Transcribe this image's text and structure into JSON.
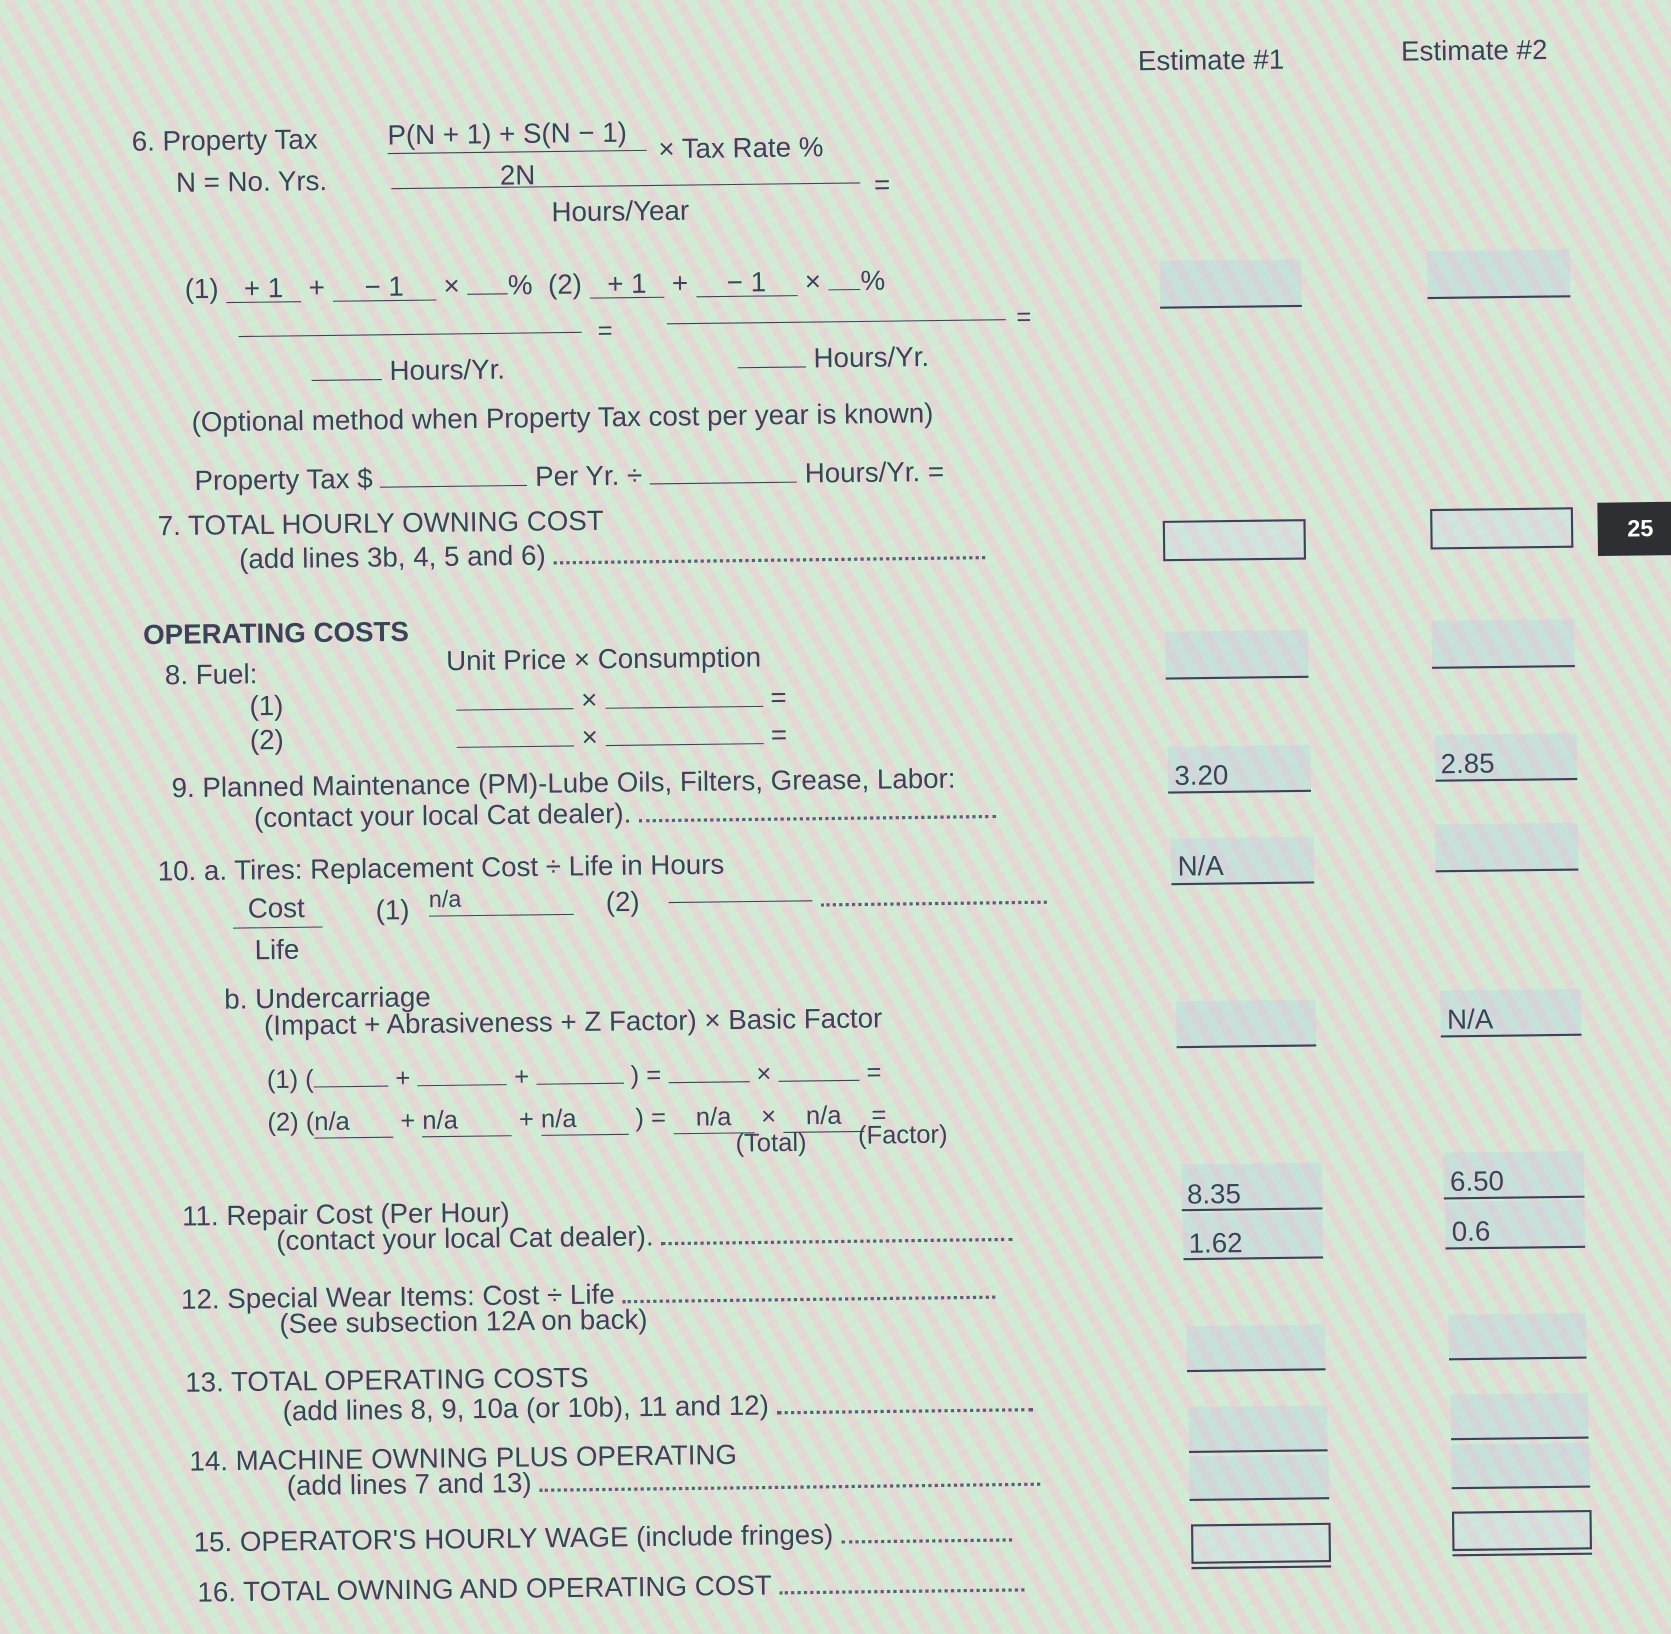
{
  "header": {
    "estimate1": "Estimate #1",
    "estimate2": "Estimate #2"
  },
  "page_tab": "25",
  "line6": {
    "title": "6. Property Tax",
    "subtitle": "N = No. Yrs.",
    "numerator": "P(N + 1) + S(N − 1)",
    "denominator": "2N",
    "tax_rate": "× Tax Rate %",
    "equals": "=",
    "hours_year": "Hours/Year",
    "row1_label": "(1)",
    "row2_label": "(2)",
    "plus1": "+ 1",
    "minus1": "− 1",
    "plus": "+",
    "times": "×",
    "percent": "%",
    "hours_yr": "Hours/Yr.",
    "optional_note": "(Optional method when Property Tax cost per year is known)",
    "optional_prefix": "Property Tax $",
    "optional_per_yr": "Per Yr. ÷",
    "optional_suffix": "Hours/Yr. ="
  },
  "line7": {
    "title": "7. TOTAL HOURLY OWNING COST",
    "subtitle": "(add lines 3b, 4, 5 and 6)"
  },
  "operating_costs_heading": "OPERATING COSTS",
  "line8": {
    "title": "8. Fuel:",
    "formula": "Unit Price × Consumption",
    "row1": "(1)",
    "row2": "(2)",
    "times": "×",
    "equals": "="
  },
  "line9": {
    "title": "9. Planned Maintenance (PM)-Lube Oils, Filters, Grease, Labor:",
    "subtitle": "(contact your local Cat dealer).",
    "estimate1": "3.20",
    "estimate2": "2.85"
  },
  "line10a": {
    "title": "10. a. Tires: Replacement Cost ÷ Life in Hours",
    "cost": "Cost",
    "life": "Life",
    "row1": "(1)",
    "row1_value": "n/a",
    "row2": "(2)",
    "estimate1": "N/A",
    "estimate2": ""
  },
  "line10b": {
    "title": "b. Undercarriage",
    "formula": "(Impact + Abrasiveness + Z Factor) × Basic Factor",
    "row1": "(1) (",
    "row2": "(2) (",
    "plus": "+",
    "close_equals": ") =",
    "times": "×",
    "equals": "=",
    "row2_values": {
      "impact": "n/a",
      "abrasiveness": "n/a",
      "z_factor": "n/a",
      "total": "n/a",
      "factor": "n/a"
    },
    "total_label": "(Total)",
    "factor_label": "(Factor)",
    "estimate1": "",
    "estimate2": "N/A"
  },
  "line11": {
    "title": "11. Repair Cost (Per Hour)",
    "subtitle": "(contact your local Cat dealer).",
    "estimate1": "8.35",
    "estimate2": "6.50"
  },
  "line12": {
    "title": "12. Special Wear Items: Cost ÷ Life",
    "subtitle": "(See subsection 12A on back)",
    "estimate1": "1.62",
    "estimate2": "0.6"
  },
  "line13": {
    "title": "13. TOTAL OPERATING COSTS",
    "subtitle": "(add lines 8, 9, 10a (or 10b), 11 and 12)"
  },
  "line14": {
    "title": "14. MACHINE OWNING PLUS OPERATING",
    "subtitle": "(add lines 7 and 13)"
  },
  "line15": {
    "title": "15. OPERATOR'S HOURLY WAGE (include fringes)"
  },
  "line16": {
    "title": "16. TOTAL OWNING AND OPERATING COST"
  }
}
